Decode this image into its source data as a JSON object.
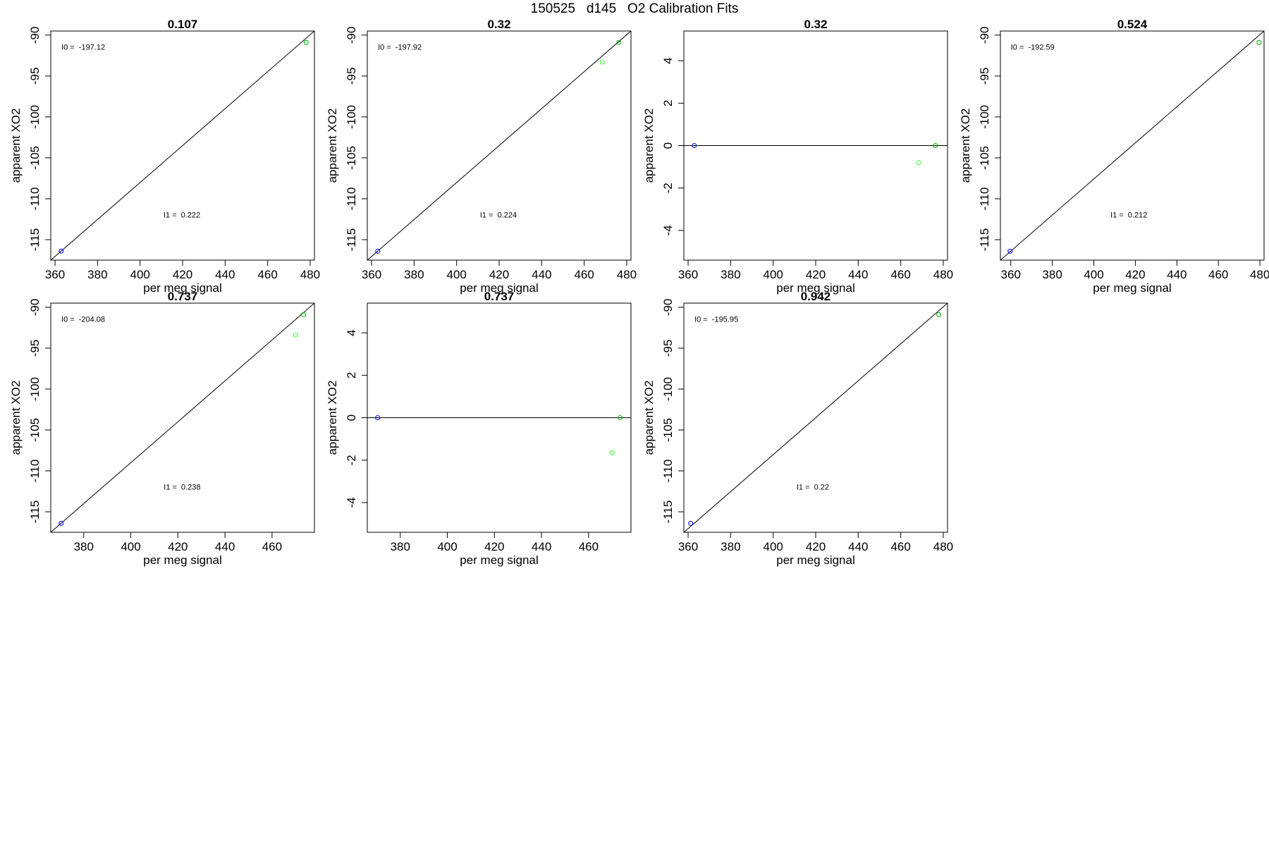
{
  "figure_title": "150525   d145   O2 Calibration Fits",
  "colors": {
    "background": "#ffffff",
    "ink": "#000000",
    "blue_point": "#0000ff",
    "green_point": "#00b400",
    "light_green_point": "#33ff33"
  },
  "chart_data": [
    {
      "type": "scatter",
      "title": "0.107",
      "xlabel": "per meg signal",
      "ylabel": "apparent XO2",
      "xlim": [
        358,
        482
      ],
      "ylim": [
        -117.5,
        -89.5
      ],
      "xticks": [
        360,
        380,
        400,
        420,
        440,
        460,
        480
      ],
      "yticks": [
        -115,
        -110,
        -105,
        -100,
        -95,
        -90
      ],
      "fit_line": {
        "kind": "linear",
        "points": [
          [
            358,
            -117.5
          ],
          [
            482,
            -89.5
          ]
        ]
      },
      "annotations": [
        {
          "label": "I0 = ",
          "value": "-197.12",
          "x": 363,
          "y": -91.8
        },
        {
          "label": "I1 = ",
          "value": "0.222",
          "x": 411,
          "y": -112.3
        }
      ],
      "points": [
        {
          "x": 362.9,
          "y": -116.4,
          "color": "blue"
        },
        {
          "x": 478.1,
          "y": -90.9,
          "color": "darkgreen"
        }
      ]
    },
    {
      "type": "scatter",
      "title": "0.32",
      "xlabel": "per meg signal",
      "ylabel": "apparent XO2",
      "xlim": [
        358,
        482
      ],
      "ylim": [
        -117.5,
        -89.5
      ],
      "xticks": [
        360,
        380,
        400,
        420,
        440,
        460,
        480
      ],
      "yticks": [
        -115,
        -110,
        -105,
        -100,
        -95,
        -90
      ],
      "fit_line": {
        "kind": "linear",
        "points": [
          [
            358,
            -117.5
          ],
          [
            482,
            -89.5
          ]
        ]
      },
      "annotations": [
        {
          "label": "I0 = ",
          "value": "-197.92",
          "x": 363,
          "y": -91.8
        },
        {
          "label": "I1 = ",
          "value": "0.224",
          "x": 411,
          "y": -112.3
        }
      ],
      "points": [
        {
          "x": 362.9,
          "y": -116.4,
          "color": "blue"
        },
        {
          "x": 476.3,
          "y": -90.9,
          "color": "darkgreen"
        },
        {
          "x": 468.5,
          "y": -93.3,
          "color": "lightgreen"
        }
      ]
    },
    {
      "type": "scatter",
      "title": "0.32",
      "xlabel": "per meg signal",
      "ylabel": "apparent XO2",
      "xlim": [
        358,
        482
      ],
      "ylim": [
        -5.4,
        5.4
      ],
      "xticks": [
        360,
        380,
        400,
        420,
        440,
        460,
        480
      ],
      "yticks": [
        -4,
        -2,
        0,
        2,
        4
      ],
      "fit_line": {
        "kind": "horizontal",
        "y": 0
      },
      "annotations": [],
      "points": [
        {
          "x": 362.9,
          "y": 0,
          "color": "blue"
        },
        {
          "x": 476.3,
          "y": 0,
          "color": "darkgreen"
        },
        {
          "x": 468.5,
          "y": -0.8,
          "color": "lightgreen"
        }
      ]
    },
    {
      "type": "scatter",
      "title": "0.524",
      "xlabel": "per meg signal",
      "ylabel": "apparent XO2",
      "xlim": [
        355,
        482
      ],
      "ylim": [
        -117.5,
        -89.5
      ],
      "xticks": [
        360,
        380,
        400,
        420,
        440,
        460,
        480
      ],
      "yticks": [
        -115,
        -110,
        -105,
        -100,
        -95,
        -90
      ],
      "fit_line": {
        "kind": "linear",
        "points": [
          [
            355,
            -117.5
          ],
          [
            482,
            -89.5
          ]
        ]
      },
      "annotations": [
        {
          "label": "I0 = ",
          "value": "-192.59",
          "x": 360,
          "y": -91.8
        },
        {
          "label": "I1 = ",
          "value": "0.212",
          "x": 408,
          "y": -112.3
        }
      ],
      "points": [
        {
          "x": 359.7,
          "y": -116.4,
          "color": "blue"
        },
        {
          "x": 479.6,
          "y": -90.9,
          "color": "darkgreen"
        }
      ]
    },
    {
      "type": "scatter",
      "title": "0.737",
      "xlabel": "per meg signal",
      "ylabel": "apparent XO2",
      "xlim": [
        366,
        478
      ],
      "ylim": [
        -117.5,
        -89.5
      ],
      "xticks": [
        380,
        400,
        420,
        440,
        460
      ],
      "yticks": [
        -115,
        -110,
        -105,
        -100,
        -95,
        -90
      ],
      "fit_line": {
        "kind": "linear",
        "points": [
          [
            366,
            -117.5
          ],
          [
            478,
            -89.5
          ]
        ]
      },
      "annotations": [
        {
          "label": "I0 = ",
          "value": "-204.08",
          "x": 370.5,
          "y": -91.8
        },
        {
          "label": "I1 = ",
          "value": "0.238",
          "x": 414,
          "y": -112.3
        }
      ],
      "points": [
        {
          "x": 370.4,
          "y": -116.4,
          "color": "blue"
        },
        {
          "x": 473.4,
          "y": -90.9,
          "color": "darkgreen"
        },
        {
          "x": 470.0,
          "y": -93.4,
          "color": "lightgreen"
        }
      ]
    },
    {
      "type": "scatter",
      "title": "0.737",
      "xlabel": "per meg signal",
      "ylabel": "apparent XO2",
      "xlim": [
        366,
        478
      ],
      "ylim": [
        -5.4,
        5.4
      ],
      "xticks": [
        380,
        400,
        420,
        440,
        460
      ],
      "yticks": [
        -4,
        -2,
        0,
        2,
        4
      ],
      "fit_line": {
        "kind": "horizontal",
        "y": 0
      },
      "annotations": [],
      "points": [
        {
          "x": 370.4,
          "y": 0,
          "color": "blue"
        },
        {
          "x": 473.4,
          "y": 0,
          "color": "darkgreen"
        },
        {
          "x": 470.0,
          "y": -1.65,
          "color": "lightgreen"
        }
      ]
    },
    {
      "type": "scatter",
      "title": "0.942",
      "xlabel": "per meg signal",
      "ylabel": "apparent XO2",
      "xlim": [
        358,
        482
      ],
      "ylim": [
        -117.5,
        -89.5
      ],
      "xticks": [
        360,
        380,
        400,
        420,
        440,
        460,
        480
      ],
      "yticks": [
        -115,
        -110,
        -105,
        -100,
        -95,
        -90
      ],
      "fit_line": {
        "kind": "linear",
        "points": [
          [
            358,
            -117.5
          ],
          [
            482,
            -89.5
          ]
        ]
      },
      "annotations": [
        {
          "label": "I0 = ",
          "value": "-195.95",
          "x": 363,
          "y": -91.8
        },
        {
          "label": "I1 = ",
          "value": "0.22",
          "x": 411,
          "y": -112.3
        }
      ],
      "points": [
        {
          "x": 361.2,
          "y": -116.4,
          "color": "blue"
        },
        {
          "x": 477.9,
          "y": -90.9,
          "color": "darkgreen"
        }
      ]
    }
  ]
}
